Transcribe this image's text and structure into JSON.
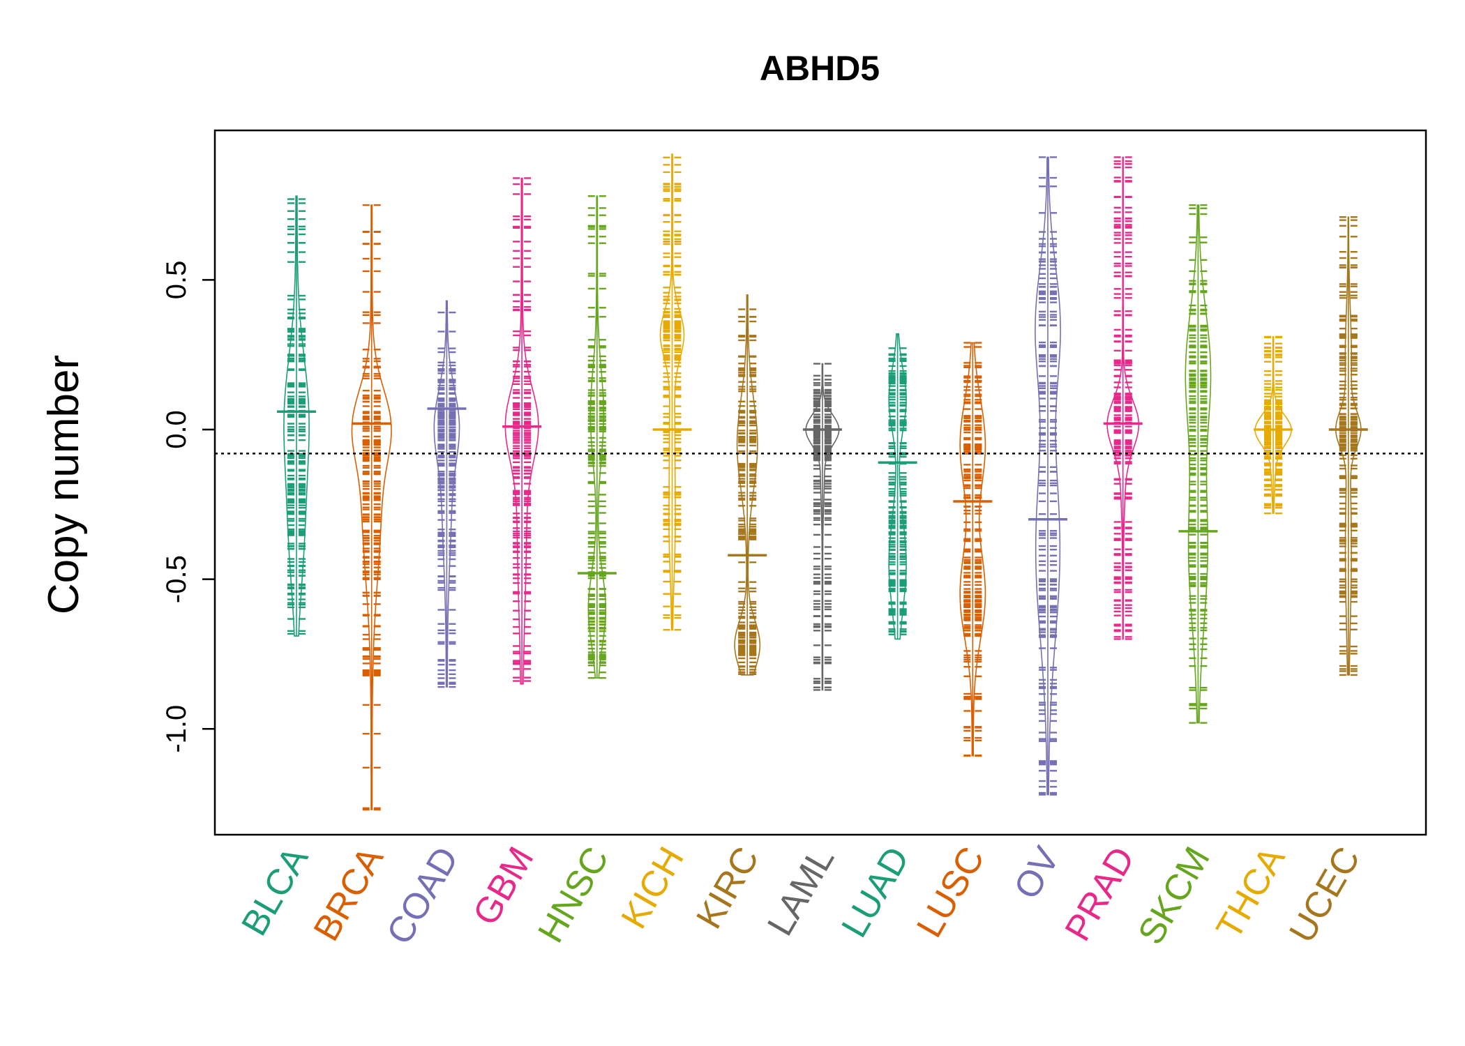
{
  "chart_data": {
    "type": "beanplot",
    "title": "ABHD5",
    "ylabel": "Copy number",
    "xlabel": "",
    "ylim": [
      -1.35,
      1.0
    ],
    "yticks": [
      -1.0,
      -0.5,
      0.0,
      0.5
    ],
    "ytick_labels": [
      "-1.0",
      "-0.5",
      "0.0",
      "0.5"
    ],
    "overall_mean": -0.08,
    "categories": [
      "BLCA",
      "BRCA",
      "COAD",
      "GBM",
      "HNSC",
      "KICH",
      "KIRC",
      "LAML",
      "LUAD",
      "LUSC",
      "OV",
      "PRAD",
      "SKCM",
      "THCA",
      "UCEC"
    ],
    "series": [
      {
        "name": "BLCA",
        "color": "#1b9e77",
        "mean": 0.06,
        "min": -0.69,
        "max": 0.78,
        "max_width": 0.32,
        "bulges": [
          [
            0.05,
            0.2,
            0.35
          ],
          [
            -0.35,
            0.2,
            0.2
          ]
        ],
        "outliers": [
          0.73,
          0.77
        ]
      },
      {
        "name": "BRCA",
        "color": "#d95f02",
        "mean": 0.02,
        "min": -1.27,
        "max": 0.75,
        "max_width": 0.5,
        "bulges": [
          [
            0.02,
            0.12,
            0.55
          ],
          [
            -0.25,
            0.25,
            0.35
          ]
        ],
        "outliers": [
          0.62,
          0.66,
          0.75,
          -0.73,
          -0.76,
          -0.92,
          -1.27
        ]
      },
      {
        "name": "COAD",
        "color": "#7570b3",
        "mean": 0.07,
        "min": -0.86,
        "max": 0.43,
        "max_width": 0.32,
        "bulges": [
          [
            0.02,
            0.12,
            0.4
          ],
          [
            -0.25,
            0.2,
            0.15
          ]
        ],
        "outliers": [
          -0.85,
          -0.86
        ]
      },
      {
        "name": "GBM",
        "color": "#e7298a",
        "mean": 0.01,
        "min": -0.85,
        "max": 0.84,
        "max_width": 0.42,
        "bulges": [
          [
            0.02,
            0.12,
            0.5
          ],
          [
            -0.3,
            0.3,
            0.15
          ]
        ],
        "outliers": [
          0.82,
          0.84,
          -0.8,
          -0.84
        ]
      },
      {
        "name": "HNSC",
        "color": "#66a61e",
        "mean": -0.48,
        "min": -0.83,
        "max": 0.78,
        "max_width": 0.22,
        "bulges": [
          [
            0.05,
            0.15,
            0.3
          ],
          [
            -0.6,
            0.12,
            0.4
          ]
        ],
        "outliers": [
          0.78,
          -0.78,
          -0.83
        ]
      },
      {
        "name": "KICH",
        "color": "#e6ab02",
        "mean": 0.0,
        "min": -0.67,
        "max": 0.92,
        "max_width": 0.3,
        "bulges": [
          [
            0.32,
            0.08,
            0.5
          ],
          [
            0.0,
            0.2,
            0.1
          ],
          [
            -0.35,
            0.15,
            0.1
          ]
        ],
        "outliers": [
          0.86,
          -0.62
        ]
      },
      {
        "name": "KIRC",
        "color": "#a6761d",
        "mean": -0.42,
        "min": -0.82,
        "max": 0.45,
        "max_width": 0.32,
        "bulges": [
          [
            -0.05,
            0.15,
            0.4
          ],
          [
            -0.72,
            0.08,
            0.5
          ]
        ],
        "outliers": []
      },
      {
        "name": "LAML",
        "color": "#666666",
        "mean": 0.0,
        "min": -0.87,
        "max": 0.22,
        "max_width": 0.42,
        "bulges": [
          [
            0.0,
            0.05,
            1.0
          ],
          [
            -0.15,
            0.1,
            0.1
          ]
        ],
        "outliers": [
          0.22,
          -0.65,
          -0.87
        ]
      },
      {
        "name": "LUAD",
        "color": "#1b9e77",
        "mean": -0.11,
        "min": -0.7,
        "max": 0.32,
        "max_width": 0.22,
        "bulges": [
          [
            0.1,
            0.1,
            0.4
          ],
          [
            -0.45,
            0.15,
            0.4
          ]
        ],
        "outliers": []
      },
      {
        "name": "LUSC",
        "color": "#d95f02",
        "mean": -0.24,
        "min": -1.09,
        "max": 0.29,
        "max_width": 0.32,
        "bulges": [
          [
            -0.05,
            0.15,
            0.4
          ],
          [
            -0.55,
            0.15,
            0.4
          ]
        ],
        "outliers": [
          0.29,
          -1.09
        ]
      },
      {
        "name": "OV",
        "color": "#7570b3",
        "mean": -0.3,
        "min": -1.22,
        "max": 0.91,
        "max_width": 0.32,
        "bulges": [
          [
            0.35,
            0.2,
            0.5
          ],
          [
            -0.4,
            0.3,
            0.5
          ]
        ],
        "outliers": [
          0.91,
          -0.92,
          -1.14,
          -1.22
        ]
      },
      {
        "name": "PRAD",
        "color": "#e7298a",
        "mean": 0.02,
        "min": -0.7,
        "max": 0.91,
        "max_width": 0.4,
        "bulges": [
          [
            0.02,
            0.08,
            0.9
          ],
          [
            -0.1,
            0.15,
            0.15
          ]
        ],
        "outliers": [
          0.91,
          0.47,
          -0.4,
          -0.47,
          -0.57,
          -0.67,
          -0.7
        ]
      },
      {
        "name": "SKCM",
        "color": "#66a61e",
        "mean": -0.34,
        "min": -0.98,
        "max": 0.75,
        "max_width": 0.32,
        "bulges": [
          [
            0.2,
            0.2,
            0.45
          ],
          [
            -0.4,
            0.25,
            0.35
          ]
        ],
        "outliers": [
          0.72,
          0.75,
          -0.98
        ]
      },
      {
        "name": "THCA",
        "color": "#e6ab02",
        "mean": 0.0,
        "min": -0.28,
        "max": 0.31,
        "max_width": 0.46,
        "bulges": [
          [
            0.0,
            0.05,
            1.0
          ],
          [
            -0.12,
            0.08,
            0.1
          ]
        ],
        "outliers": [
          0.31,
          -0.28
        ]
      },
      {
        "name": "UCEC",
        "color": "#a6761d",
        "mean": 0.0,
        "min": -0.82,
        "max": 0.71,
        "max_width": 0.32,
        "bulges": [
          [
            0.0,
            0.06,
            0.8
          ],
          [
            0.25,
            0.15,
            0.2
          ],
          [
            -0.4,
            0.25,
            0.2
          ]
        ],
        "outliers": [
          0.71,
          -0.82
        ]
      }
    ],
    "grid": false,
    "legend": "none"
  }
}
